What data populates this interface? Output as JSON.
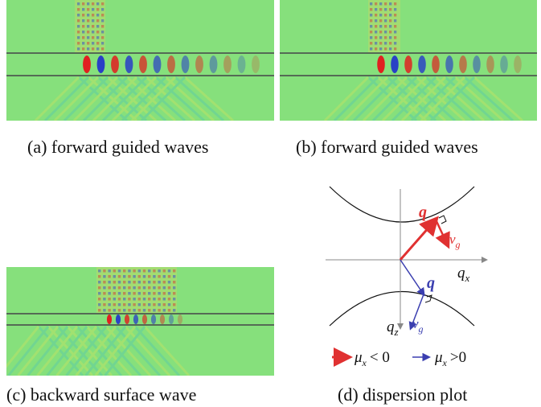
{
  "figure": {
    "panels": [
      {
        "caption": "(a) forward guided waves"
      },
      {
        "caption": "(b) forward guided waves"
      },
      {
        "caption": "(c) backward surface wave"
      },
      {
        "caption": "(d) dispersion plot"
      }
    ],
    "dispersion": {
      "q_label": "q",
      "vg_label": "v",
      "vg_sub": "g",
      "qx_label": "q",
      "qx_sub": "x",
      "qz_label": "q",
      "qz_sub": "z",
      "legend_neg_mu": "μ",
      "legend_neg_sub": "x",
      "legend_neg_rel": "< 0",
      "legend_pos_mu": "μ",
      "legend_pos_sub": "x",
      "legend_pos_rel": ">0"
    },
    "colors": {
      "field_background": "#86e07c",
      "negative_case": "#e03131",
      "positive_case": "#3b3fb0",
      "axes": "#888888"
    }
  }
}
